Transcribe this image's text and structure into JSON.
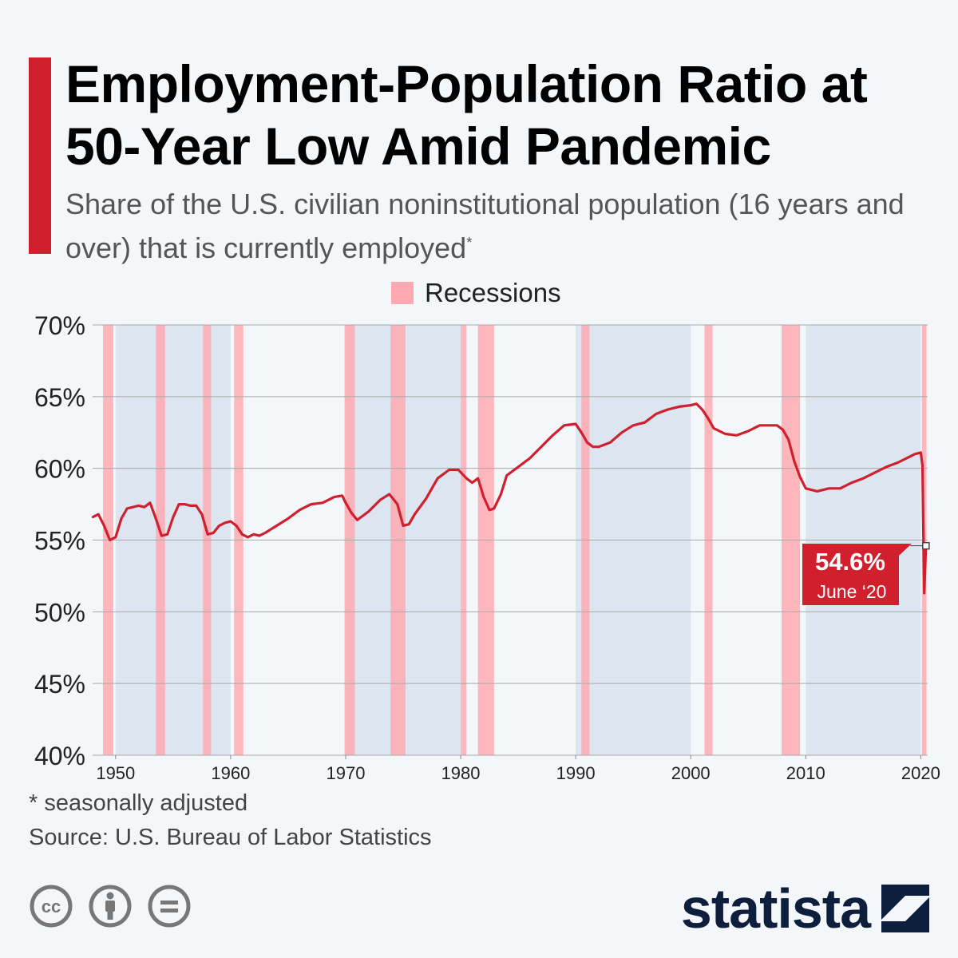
{
  "title": "Employment-Population Ratio at 50-Year Low Amid Pandemic",
  "subtitle": "Share of the U.S. civilian noninstitutional population (16 years and over) that is currently employed",
  "subtitle_mark": "*",
  "legend": {
    "recessions": "Recessions"
  },
  "footnote": "* seasonally adjusted",
  "source": "Source: U.S. Bureau of Labor Statistics",
  "brand": "statista",
  "colors": {
    "line": "#d0202e",
    "recession": "#ffaab2",
    "accent": "#d0202e",
    "brand": "#0d1f3c",
    "decade_shade": "#dde5f0"
  },
  "icons": [
    "cc-icon",
    "attribution-icon",
    "no-derivatives-icon",
    "statista-logo-icon"
  ],
  "chart_data": {
    "type": "line",
    "title": "Employment-Population Ratio",
    "xlabel": "",
    "ylabel": "",
    "xlim": [
      1948,
      2020.6
    ],
    "ylim": [
      40,
      70
    ],
    "y_ticks": [
      70,
      65,
      60,
      55,
      50,
      45,
      40
    ],
    "y_tick_labels": [
      "70%",
      "65%",
      "60%",
      "55%",
      "50%",
      "45%",
      "40%"
    ],
    "x_ticks": [
      1950,
      1960,
      1970,
      1980,
      1990,
      2000,
      2010,
      2020
    ],
    "x_tick_labels": [
      "1950",
      "1960",
      "1970",
      "1980",
      "1990",
      "2000",
      "2010",
      "2020"
    ],
    "recessions": [
      [
        1948.9,
        1949.8
      ],
      [
        1953.5,
        1954.3
      ],
      [
        1957.6,
        1958.3
      ],
      [
        1960.3,
        1961.1
      ],
      [
        1969.9,
        1970.8
      ],
      [
        1973.9,
        1975.2
      ],
      [
        1980.0,
        1980.5
      ],
      [
        1981.5,
        1982.9
      ],
      [
        1990.5,
        1991.2
      ],
      [
        2001.2,
        2001.9
      ],
      [
        2007.9,
        2009.5
      ],
      [
        2020.1,
        2020.5
      ]
    ],
    "decade_shades": [
      [
        1950,
        1960
      ],
      [
        1970,
        1980
      ],
      [
        1990,
        2000
      ],
      [
        2010,
        2020
      ]
    ],
    "series": [
      {
        "name": "Employment-population ratio",
        "x": [
          1948.0,
          1948.5,
          1949.0,
          1949.5,
          1950.0,
          1950.5,
          1951.0,
          1951.5,
          1952.0,
          1952.5,
          1953.0,
          1953.5,
          1954.0,
          1954.5,
          1955.0,
          1955.5,
          1956.0,
          1956.5,
          1957.0,
          1957.5,
          1958.0,
          1958.5,
          1959.0,
          1959.5,
          1960.0,
          1960.5,
          1961.0,
          1961.5,
          1962.0,
          1962.5,
          1963.0,
          1964.0,
          1965.0,
          1966.0,
          1967.0,
          1968.0,
          1969.0,
          1969.7,
          1970.0,
          1970.5,
          1971.0,
          1971.5,
          1972.0,
          1973.0,
          1973.8,
          1974.5,
          1975.0,
          1975.5,
          1976.0,
          1977.0,
          1978.0,
          1979.0,
          1979.8,
          1980.5,
          1981.0,
          1981.5,
          1982.0,
          1982.5,
          1982.9,
          1983.5,
          1984.0,
          1985.0,
          1986.0,
          1987.0,
          1988.0,
          1989.0,
          1990.0,
          1990.5,
          1991.0,
          1991.5,
          1992.0,
          1993.0,
          1994.0,
          1995.0,
          1996.0,
          1997.0,
          1998.0,
          1999.0,
          2000.0,
          2000.5,
          2001.0,
          2001.5,
          2002.0,
          2003.0,
          2004.0,
          2005.0,
          2006.0,
          2007.0,
          2007.5,
          2008.0,
          2008.5,
          2009.0,
          2009.5,
          2010.0,
          2011.0,
          2012.0,
          2013.0,
          2014.0,
          2015.0,
          2016.0,
          2017.0,
          2018.0,
          2019.0,
          2019.5,
          2020.0,
          2020.15,
          2020.3,
          2020.45
        ],
        "values": [
          56.6,
          56.8,
          56.0,
          55.0,
          55.2,
          56.5,
          57.2,
          57.3,
          57.4,
          57.3,
          57.6,
          56.5,
          55.3,
          55.4,
          56.6,
          57.5,
          57.5,
          57.4,
          57.4,
          56.8,
          55.4,
          55.5,
          56.0,
          56.2,
          56.3,
          56.0,
          55.4,
          55.2,
          55.4,
          55.3,
          55.5,
          56.0,
          56.5,
          57.1,
          57.5,
          57.6,
          58.0,
          58.1,
          57.6,
          56.9,
          56.4,
          56.7,
          57.0,
          57.8,
          58.2,
          57.5,
          56.0,
          56.1,
          56.8,
          57.9,
          59.3,
          59.9,
          59.9,
          59.3,
          59.0,
          59.3,
          58.0,
          57.1,
          57.2,
          58.2,
          59.5,
          60.1,
          60.7,
          61.5,
          62.3,
          63.0,
          63.1,
          62.5,
          61.8,
          61.5,
          61.5,
          61.8,
          62.5,
          63.0,
          63.2,
          63.8,
          64.1,
          64.3,
          64.4,
          64.5,
          64.1,
          63.5,
          62.8,
          62.4,
          62.3,
          62.6,
          63.0,
          63.0,
          63.0,
          62.7,
          62.0,
          60.5,
          59.4,
          58.6,
          58.4,
          58.6,
          58.6,
          59.0,
          59.3,
          59.7,
          60.1,
          60.4,
          60.8,
          61.0,
          61.1,
          60.2,
          51.3,
          54.6
        ]
      }
    ],
    "annotation": {
      "value": "54.6%",
      "label": "June ‘20",
      "x": 2020.45,
      "y": 54.6
    }
  }
}
